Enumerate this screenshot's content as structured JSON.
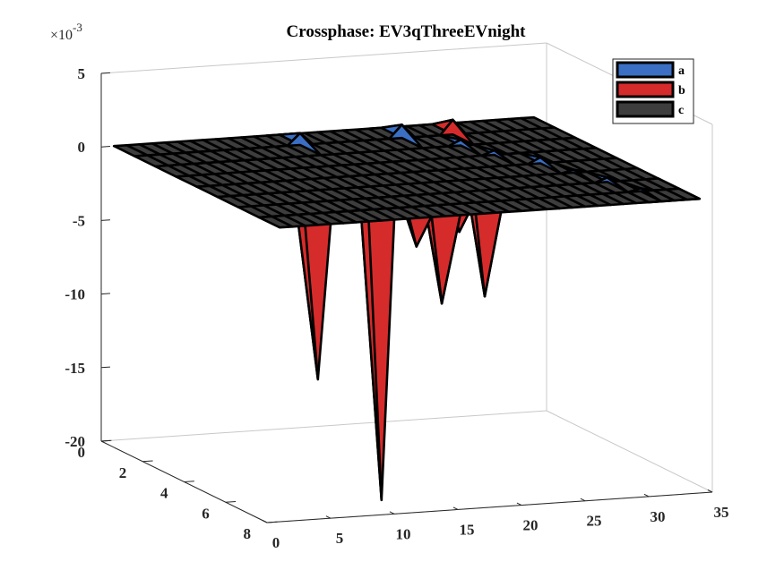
{
  "chart_data": {
    "type": "surface3d",
    "title": "Crossphase: EV3qThreeEVnight",
    "z_exponent_label": "×10",
    "z_exponent_power": "-3",
    "z_scale": 0.001,
    "xlim": [
      0,
      35
    ],
    "ylim": [
      0,
      8
    ],
    "zlim": [
      -20,
      5
    ],
    "x_ticks": [
      "0",
      "5",
      "10",
      "15",
      "20",
      "25",
      "30",
      "35"
    ],
    "y_ticks": [
      "0",
      "2",
      "4",
      "6",
      "8"
    ],
    "z_ticks": [
      "-20",
      "-15",
      "-10",
      "-5",
      "0",
      "5"
    ],
    "legend_position": "top-right",
    "grid": false,
    "baseline": 0,
    "series": [
      {
        "name": "a",
        "color": "#3a6fc4",
        "peaks": [
          {
            "x": 14,
            "y": 1,
            "z": 0.8
          },
          {
            "x": 22,
            "y": 1,
            "z": 0.9
          },
          {
            "x": 25,
            "y": 2,
            "z": 0.4
          },
          {
            "x": 26,
            "y": 3,
            "z": 0.3
          },
          {
            "x": 28,
            "y": 4,
            "z": 0.4
          },
          {
            "x": 29,
            "y": 5,
            "z": 0.2
          },
          {
            "x": 30,
            "y": 6,
            "z": 0.3
          },
          {
            "x": 31,
            "y": 7,
            "z": 0.2
          }
        ]
      },
      {
        "name": "b",
        "color": "#d62b2b",
        "peaks": [
          {
            "x": 4,
            "y": 8,
            "z": -10.5
          },
          {
            "x": 9,
            "y": 8,
            "z": -19
          },
          {
            "x": 15,
            "y": 6,
            "z": -3.5
          },
          {
            "x": 17,
            "y": 6,
            "z": -7.5
          },
          {
            "x": 20,
            "y": 5,
            "z": -3.5
          },
          {
            "x": 22,
            "y": 5,
            "z": -8
          },
          {
            "x": 24,
            "y": 3,
            "z": -1.0
          },
          {
            "x": 26,
            "y": 1,
            "z": 1.0
          },
          {
            "x": 28,
            "y": 4,
            "z": -0.6
          },
          {
            "x": 31,
            "y": 6,
            "z": -0.6
          },
          {
            "x": 33,
            "y": 7,
            "z": -0.5
          }
        ]
      },
      {
        "name": "c",
        "color": "#3d3d3d",
        "peaks": []
      }
    ]
  }
}
